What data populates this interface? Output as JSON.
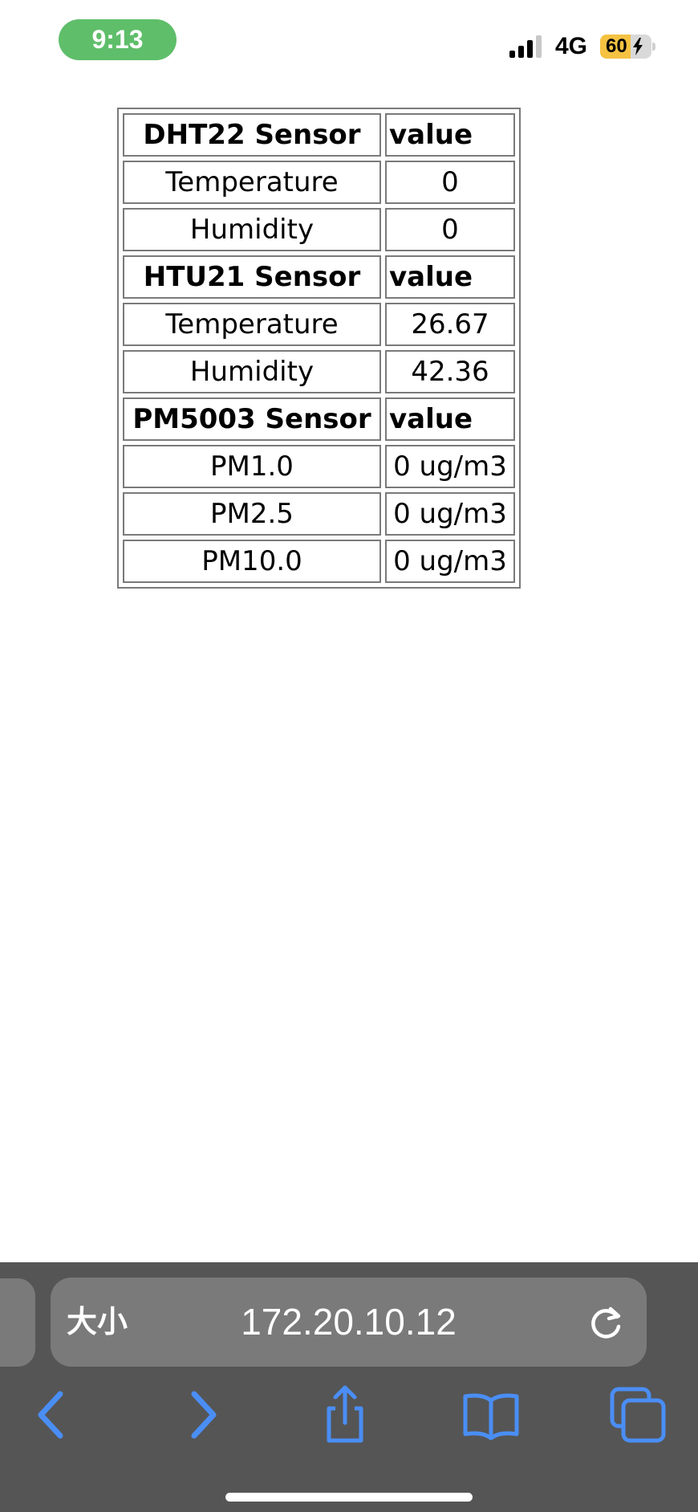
{
  "status_bar": {
    "time": "9:13",
    "network": "4G",
    "battery_level": "60",
    "battery_fraction": 0.6,
    "battery_color": "#f5c242",
    "time_pill_color": "#5fbe6a"
  },
  "sensor_table": {
    "rows": [
      {
        "label": "DHT22 Sensor",
        "value": "value",
        "header": true
      },
      {
        "label": "Temperature",
        "value": "0"
      },
      {
        "label": "Humidity",
        "value": "0"
      },
      {
        "label": "HTU21 Sensor",
        "value": "value",
        "header": true
      },
      {
        "label": "Temperature",
        "value": "26.67"
      },
      {
        "label": "Humidity",
        "value": "42.36"
      },
      {
        "label": "PM5003 Sensor",
        "value": "value",
        "header": true
      },
      {
        "label": "PM1.0",
        "value": "0 ug/m3"
      },
      {
        "label": "PM2.5",
        "value": "0 ug/m3"
      },
      {
        "label": "PM10.0",
        "value": "0 ug/m3"
      }
    ]
  },
  "browser": {
    "font_size_label": "大小",
    "url": "172.20.10.12",
    "accent_color": "#4a8ef5",
    "icons": {
      "reload": "reload-icon",
      "back": "back-chevron-icon",
      "forward": "forward-chevron-icon",
      "share": "share-icon",
      "bookmarks": "bookmarks-book-icon",
      "tabs": "tabs-icon"
    }
  }
}
